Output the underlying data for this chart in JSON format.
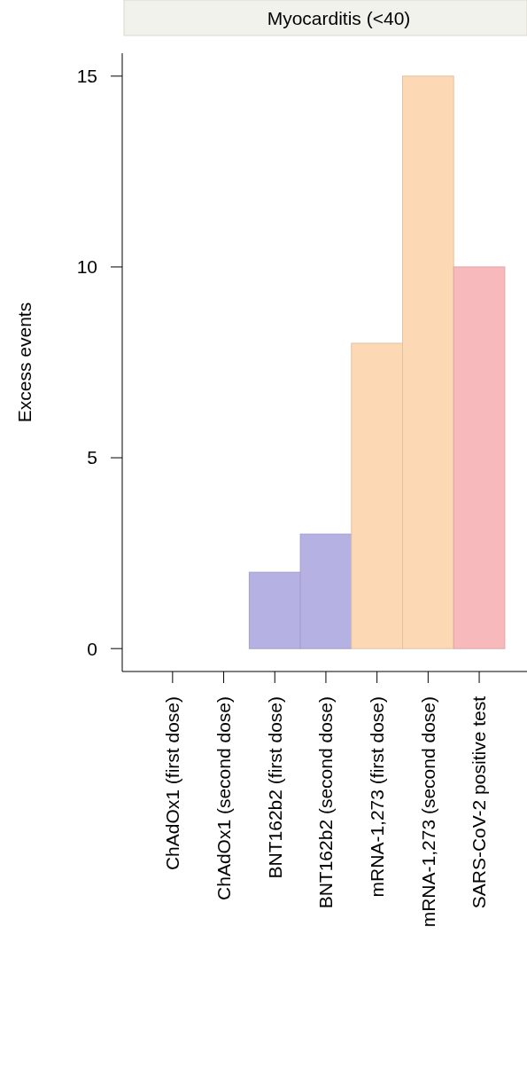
{
  "chart_data": {
    "type": "bar",
    "title": "Myocarditis (<40)",
    "ylabel": "Excess events",
    "categories": [
      "ChAdOx1 (first dose)",
      "ChAdOx1 (second dose)",
      "BNT162b2 (first dose)",
      "BNT162b2 (second dose)",
      "mRNA-1,273 (first dose)",
      "mRNA-1,273 (second dose)",
      "SARS-CoV-2 positive test"
    ],
    "values": [
      0,
      0,
      2,
      3,
      8,
      15,
      10
    ],
    "colors": [
      "#b5b1e3",
      "#b5b1e3",
      "#b5b1e3",
      "#b5b1e3",
      "#fdd8b4",
      "#fdd8b4",
      "#f7b9bb"
    ],
    "ylim": [
      -0.6,
      15.6
    ],
    "yticks": [
      0,
      5,
      10,
      15
    ],
    "grid": false
  }
}
